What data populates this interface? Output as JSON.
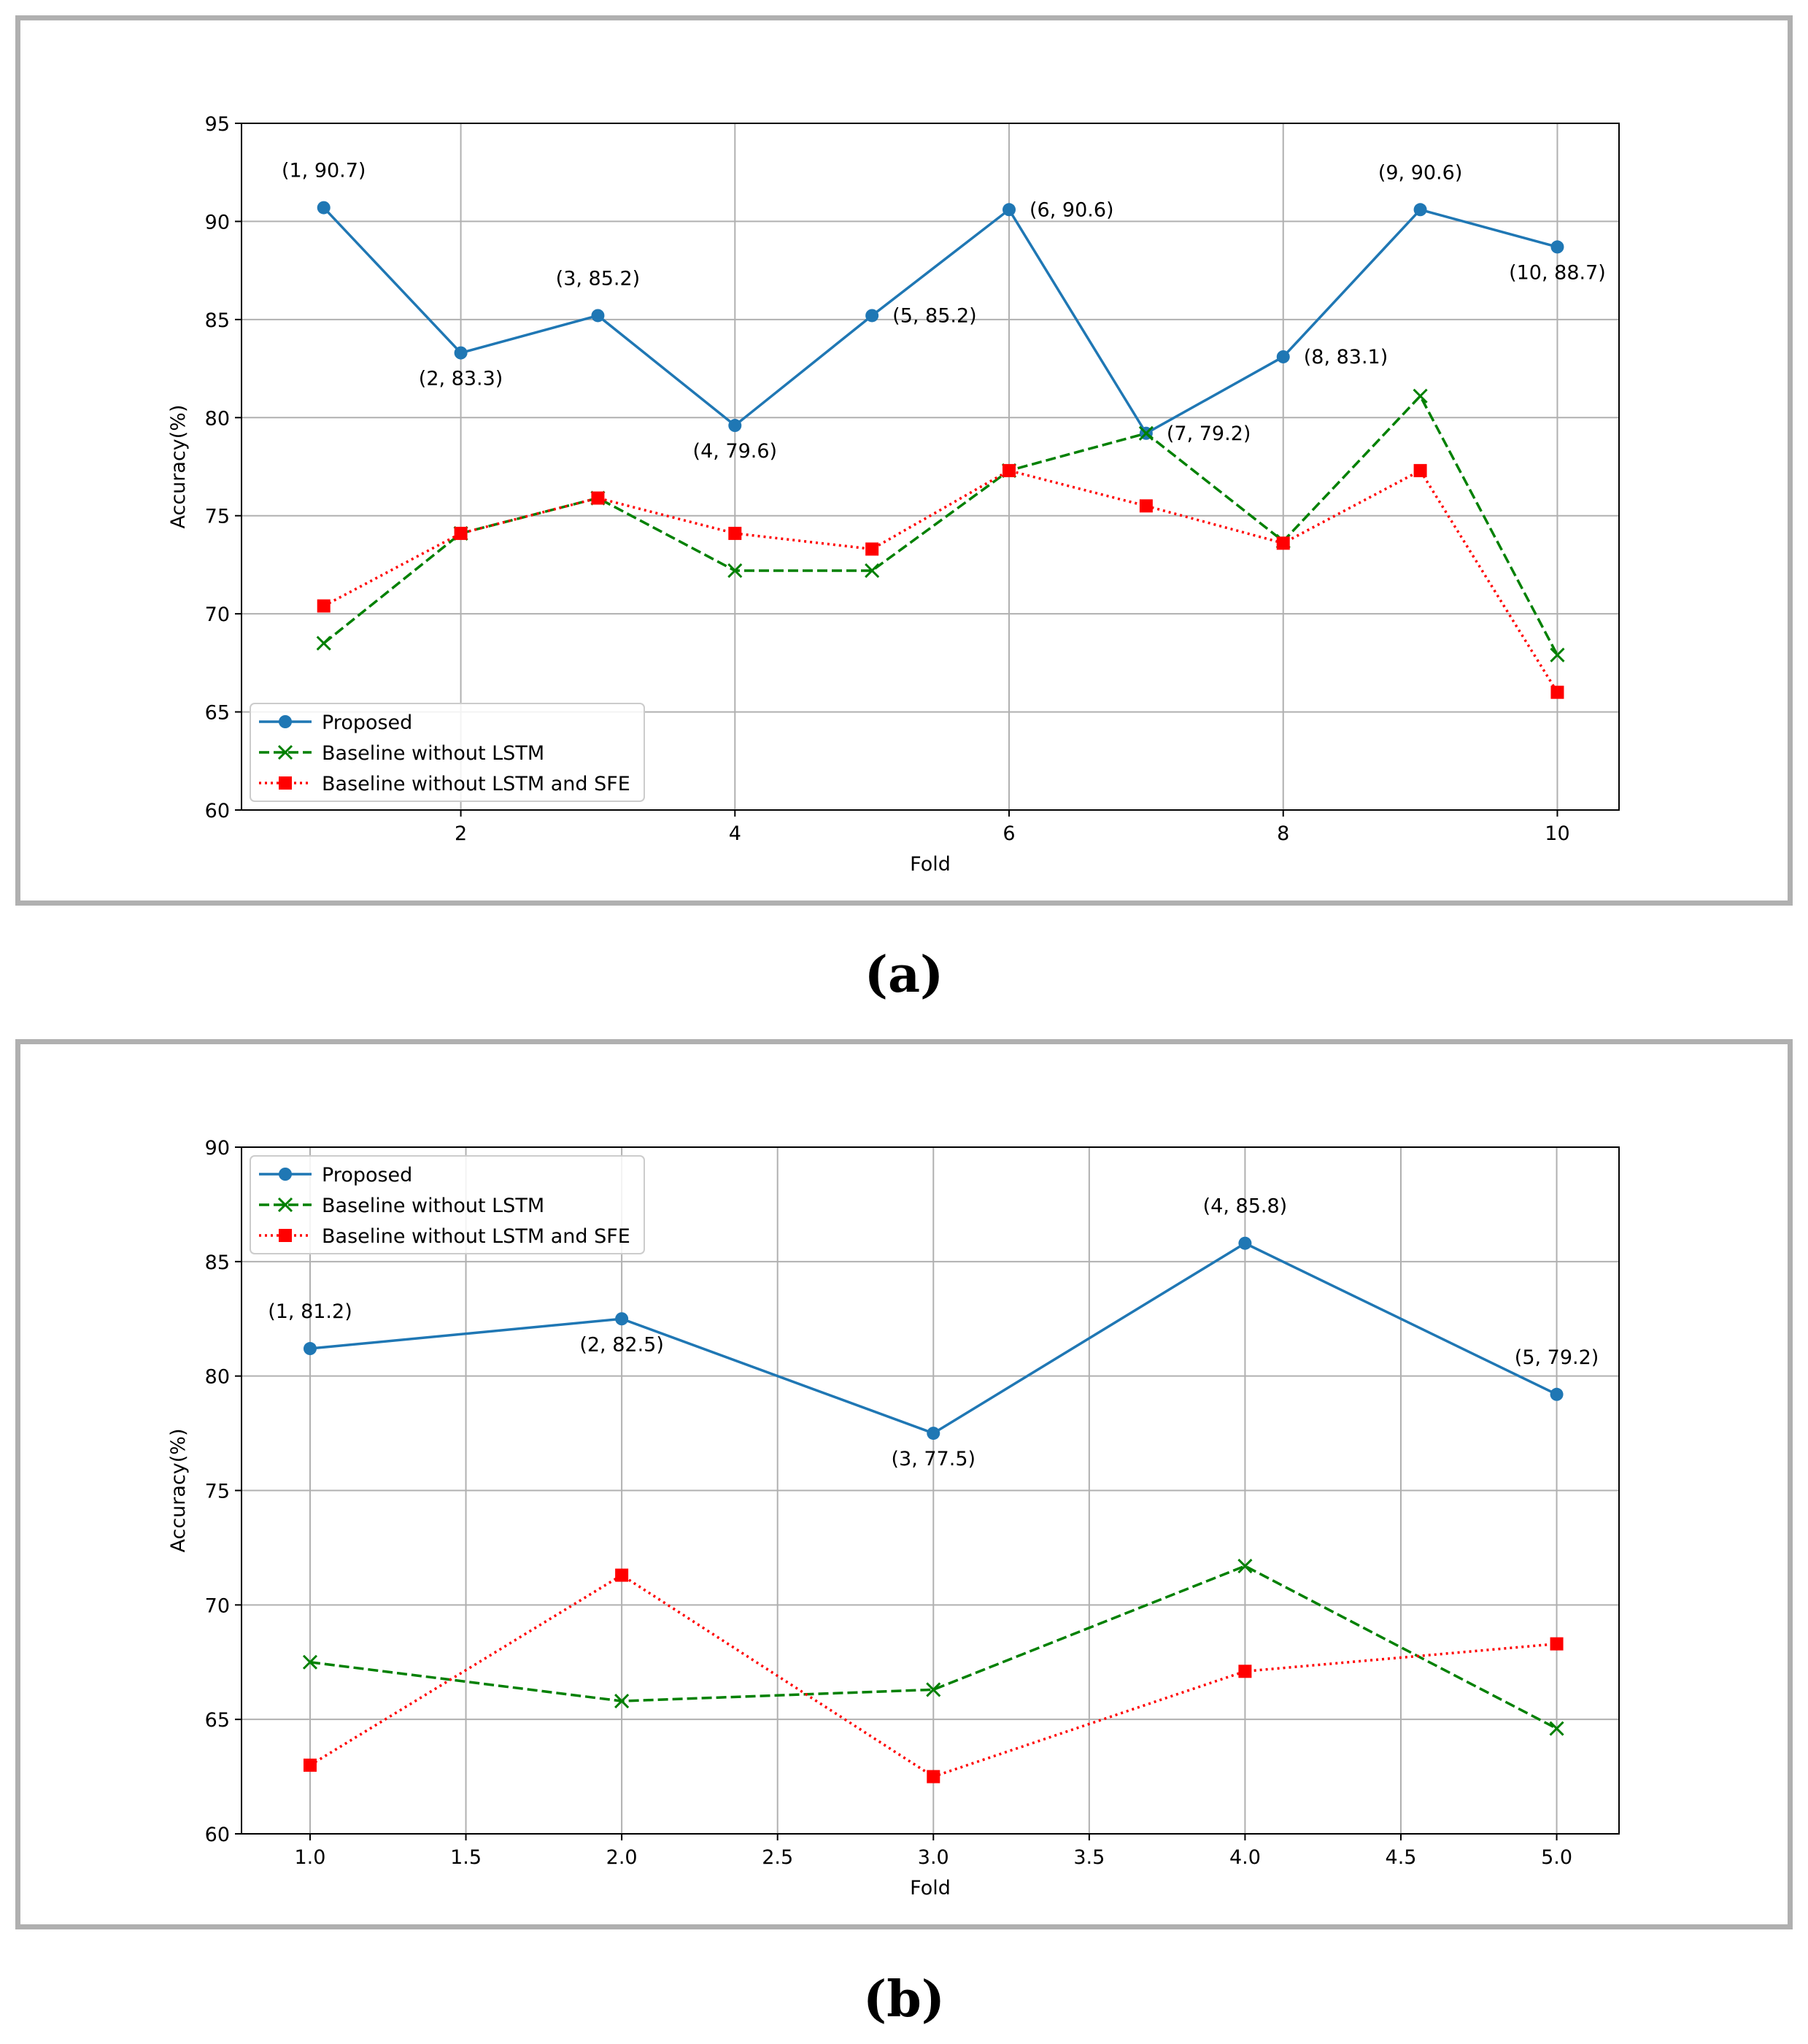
{
  "captions": {
    "a": "(a)",
    "b": "(b)"
  },
  "colors": {
    "proposed": "#1f77b4",
    "baseline_lstm": "#008000",
    "baseline_lstm_sfe": "#ff0000",
    "grid": "#b0b0b0",
    "frame": "#b0b0b0"
  },
  "chart_data": [
    {
      "id": "a",
      "type": "line",
      "title": "",
      "xlabel": "Fold",
      "ylabel": "Accuracy(%)",
      "xlim": [
        0.4,
        10.45
      ],
      "ylim": [
        60,
        95
      ],
      "xticks": [
        2,
        4,
        6,
        8,
        10
      ],
      "xtick_labels": [
        "2",
        "4",
        "6",
        "8",
        "10"
      ],
      "yticks": [
        60,
        65,
        70,
        75,
        80,
        85,
        90,
        95
      ],
      "ytick_labels": [
        "60",
        "65",
        "70",
        "75",
        "80",
        "85",
        "90",
        "95"
      ],
      "grid": true,
      "legend_position": "lower-left",
      "x": [
        1,
        2,
        3,
        4,
        5,
        6,
        7,
        8,
        9,
        10
      ],
      "series": [
        {
          "name": "Proposed",
          "values": [
            90.7,
            83.3,
            85.2,
            79.6,
            85.2,
            90.6,
            79.2,
            83.1,
            90.6,
            88.7
          ],
          "color": "#1f77b4",
          "marker": "circle",
          "dash": "solid"
        },
        {
          "name": "Baseline without LSTM",
          "values": [
            68.5,
            74.1,
            75.9,
            72.2,
            72.2,
            77.3,
            79.2,
            73.7,
            81.1,
            67.9
          ],
          "color": "#008000",
          "marker": "x",
          "dash": "dashed"
        },
        {
          "name": "Baseline without LSTM and SFE",
          "values": [
            70.4,
            74.1,
            75.9,
            74.1,
            73.3,
            77.3,
            75.5,
            73.6,
            77.3,
            66.0
          ],
          "color": "#ff0000",
          "marker": "square",
          "dash": "dotted"
        }
      ],
      "annotations": [
        {
          "text": "(1, 90.7)",
          "x": 1,
          "y": 90.7,
          "pos": "above"
        },
        {
          "text": "(2, 83.3)",
          "x": 2,
          "y": 83.3,
          "pos": "below"
        },
        {
          "text": "(3, 85.2)",
          "x": 3,
          "y": 85.2,
          "pos": "above"
        },
        {
          "text": "(4, 79.6)",
          "x": 4,
          "y": 79.6,
          "pos": "below"
        },
        {
          "text": "(5, 85.2)",
          "x": 5,
          "y": 85.2,
          "pos": "right"
        },
        {
          "text": "(6, 90.6)",
          "x": 6,
          "y": 90.6,
          "pos": "right"
        },
        {
          "text": "(7, 79.2)",
          "x": 7,
          "y": 79.2,
          "pos": "right"
        },
        {
          "text": "(8, 83.1)",
          "x": 8,
          "y": 83.1,
          "pos": "right"
        },
        {
          "text": "(9, 90.6)",
          "x": 9,
          "y": 90.6,
          "pos": "above"
        },
        {
          "text": "(10, 88.7)",
          "x": 10,
          "y": 88.7,
          "pos": "below"
        }
      ]
    },
    {
      "id": "b",
      "type": "line",
      "title": "",
      "xlabel": "Fold",
      "ylabel": "Accuracy(%)",
      "xlim": [
        0.78,
        5.2
      ],
      "ylim": [
        60,
        90
      ],
      "xticks": [
        1.0,
        1.5,
        2.0,
        2.5,
        3.0,
        3.5,
        4.0,
        4.5,
        5.0
      ],
      "xtick_labels": [
        "1.0",
        "1.5",
        "2.0",
        "2.5",
        "3.0",
        "3.5",
        "4.0",
        "4.5",
        "5.0"
      ],
      "yticks": [
        60,
        65,
        70,
        75,
        80,
        85,
        90
      ],
      "ytick_labels": [
        "60",
        "65",
        "70",
        "75",
        "80",
        "85",
        "90"
      ],
      "grid": true,
      "legend_position": "upper-left",
      "x": [
        1,
        2,
        3,
        4,
        5
      ],
      "series": [
        {
          "name": "Proposed",
          "values": [
            81.2,
            82.5,
            77.5,
            85.8,
            79.2
          ],
          "color": "#1f77b4",
          "marker": "circle",
          "dash": "solid"
        },
        {
          "name": "Baseline without LSTM",
          "values": [
            67.5,
            65.8,
            66.3,
            71.7,
            64.6
          ],
          "color": "#008000",
          "marker": "x",
          "dash": "dashed"
        },
        {
          "name": "Baseline without LSTM and SFE",
          "values": [
            63.0,
            71.3,
            62.5,
            67.1,
            68.3
          ],
          "color": "#ff0000",
          "marker": "square",
          "dash": "dotted"
        }
      ],
      "annotations": [
        {
          "text": "(1, 81.2)",
          "x": 1,
          "y": 81.2,
          "pos": "above"
        },
        {
          "text": "(2, 82.5)",
          "x": 2,
          "y": 82.5,
          "pos": "below"
        },
        {
          "text": "(3, 77.5)",
          "x": 3,
          "y": 77.5,
          "pos": "below"
        },
        {
          "text": "(4, 85.8)",
          "x": 4,
          "y": 85.8,
          "pos": "above"
        },
        {
          "text": "(5, 79.2)",
          "x": 5,
          "y": 79.2,
          "pos": "above"
        }
      ]
    }
  ]
}
